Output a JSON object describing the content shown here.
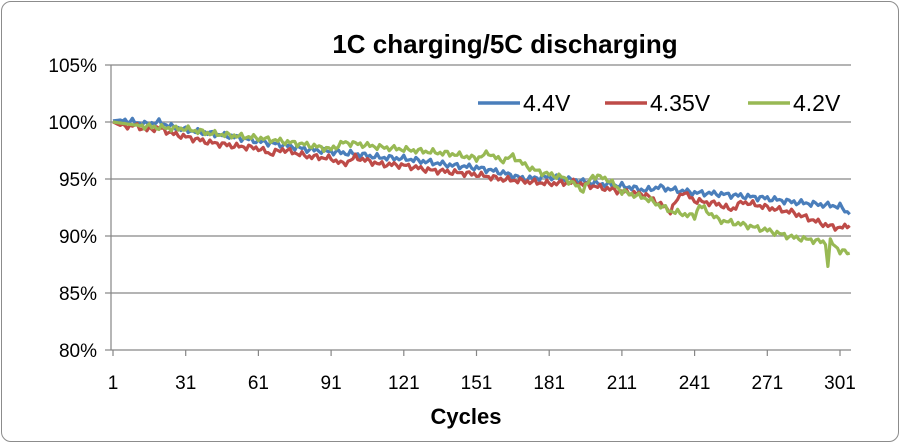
{
  "chart_data": {
    "type": "line",
    "title": "1C charging/5C discharging",
    "xlabel": "Cycles",
    "ylabel": "",
    "xlim": [
      1,
      306
    ],
    "ylim": [
      80,
      105
    ],
    "x_ticks": [
      "1",
      "31",
      "61",
      "91",
      "121",
      "151",
      "181",
      "211",
      "241",
      "271",
      "301"
    ],
    "y_ticks": [
      "80%",
      "85%",
      "90%",
      "95%",
      "100%",
      "105%"
    ],
    "grid": "horizontal",
    "legend": "top-right",
    "series": [
      {
        "name": "4.4V",
        "color": "#4a7ebb",
        "points": [
          [
            1,
            100.1
          ],
          [
            5,
            100.2
          ],
          [
            10,
            100.0
          ],
          [
            15,
            99.8
          ],
          [
            20,
            100.0
          ],
          [
            25,
            99.6
          ],
          [
            31,
            99.3
          ],
          [
            41,
            99.0
          ],
          [
            51,
            98.7
          ],
          [
            61,
            98.3
          ],
          [
            71,
            98.0
          ],
          [
            81,
            97.6
          ],
          [
            91,
            97.4
          ],
          [
            101,
            97.2
          ],
          [
            111,
            96.9
          ],
          [
            121,
            96.8
          ],
          [
            131,
            96.5
          ],
          [
            141,
            96.2
          ],
          [
            151,
            96.0
          ],
          [
            161,
            95.6
          ],
          [
            171,
            95.0
          ],
          [
            181,
            95.2
          ],
          [
            191,
            94.9
          ],
          [
            201,
            94.6
          ],
          [
            211,
            94.4
          ],
          [
            221,
            94.0
          ],
          [
            226,
            94.3
          ],
          [
            231,
            94.1
          ],
          [
            241,
            93.8
          ],
          [
            251,
            93.7
          ],
          [
            261,
            93.5
          ],
          [
            271,
            93.3
          ],
          [
            281,
            93.0
          ],
          [
            291,
            92.8
          ],
          [
            301,
            92.6
          ],
          [
            305,
            91.9
          ]
        ]
      },
      {
        "name": "4.35V",
        "color": "#be4b48",
        "points": [
          [
            1,
            100.0
          ],
          [
            5,
            99.6
          ],
          [
            10,
            99.7
          ],
          [
            15,
            99.3
          ],
          [
            20,
            99.5
          ],
          [
            25,
            99.0
          ],
          [
            31,
            98.7
          ],
          [
            41,
            98.2
          ],
          [
            51,
            97.9
          ],
          [
            61,
            97.7
          ],
          [
            66,
            97.2
          ],
          [
            71,
            97.6
          ],
          [
            81,
            97.0
          ],
          [
            91,
            96.8
          ],
          [
            96,
            96.3
          ],
          [
            101,
            96.9
          ],
          [
            111,
            96.3
          ],
          [
            121,
            96.2
          ],
          [
            131,
            95.8
          ],
          [
            141,
            95.6
          ],
          [
            151,
            95.4
          ],
          [
            161,
            95.0
          ],
          [
            171,
            94.8
          ],
          [
            181,
            94.6
          ],
          [
            191,
            94.7
          ],
          [
            201,
            94.3
          ],
          [
            211,
            93.9
          ],
          [
            221,
            93.6
          ],
          [
            231,
            92.2
          ],
          [
            236,
            93.9
          ],
          [
            241,
            93.1
          ],
          [
            251,
            92.8
          ],
          [
            256,
            92.3
          ],
          [
            261,
            93.0
          ],
          [
            271,
            92.5
          ],
          [
            281,
            92.1
          ],
          [
            291,
            91.3
          ],
          [
            296,
            90.9
          ],
          [
            301,
            90.7
          ],
          [
            305,
            90.9
          ]
        ]
      },
      {
        "name": "4.2V",
        "color": "#98b954",
        "points": [
          [
            1,
            100.0
          ],
          [
            11,
            99.7
          ],
          [
            21,
            99.5
          ],
          [
            31,
            99.4
          ],
          [
            41,
            99.0
          ],
          [
            51,
            98.8
          ],
          [
            61,
            98.6
          ],
          [
            71,
            98.3
          ],
          [
            81,
            98.0
          ],
          [
            91,
            97.6
          ],
          [
            96,
            98.2
          ],
          [
            101,
            98.1
          ],
          [
            111,
            97.8
          ],
          [
            121,
            97.6
          ],
          [
            131,
            97.4
          ],
          [
            141,
            97.2
          ],
          [
            151,
            96.8
          ],
          [
            156,
            97.3
          ],
          [
            161,
            96.6
          ],
          [
            166,
            97.0
          ],
          [
            171,
            96.2
          ],
          [
            176,
            95.7
          ],
          [
            181,
            95.4
          ],
          [
            186,
            95.2
          ],
          [
            191,
            94.6
          ],
          [
            195,
            94.0
          ],
          [
            199,
            95.3
          ],
          [
            205,
            95.0
          ],
          [
            211,
            93.9
          ],
          [
            221,
            93.3
          ],
          [
            231,
            92.2
          ],
          [
            241,
            91.7
          ],
          [
            243,
            92.7
          ],
          [
            251,
            91.4
          ],
          [
            261,
            91.0
          ],
          [
            271,
            90.5
          ],
          [
            281,
            89.9
          ],
          [
            291,
            89.6
          ],
          [
            295,
            89.4
          ],
          [
            296,
            87.5
          ],
          [
            297,
            89.5
          ],
          [
            301,
            88.7
          ],
          [
            305,
            88.5
          ]
        ]
      }
    ]
  }
}
